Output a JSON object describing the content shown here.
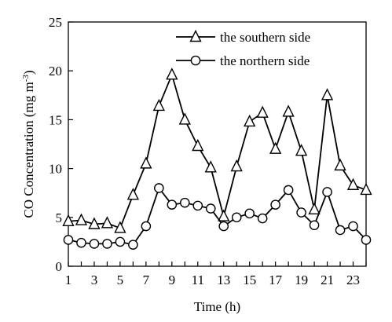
{
  "chart_data": {
    "type": "line",
    "title": "",
    "xlabel": "Time (h)",
    "ylabel": "CO Concentration (mg m",
    "ylabel_sup": "-3",
    "ylabel_close": ")",
    "xlim": [
      1,
      24
    ],
    "ylim": [
      0,
      25
    ],
    "x_ticks": [
      1,
      3,
      5,
      7,
      9,
      11,
      13,
      15,
      17,
      19,
      21,
      23
    ],
    "y_ticks": [
      0,
      5,
      10,
      15,
      20,
      25
    ],
    "grid": false,
    "legend_position": "top-right",
    "x": [
      1,
      2,
      3,
      4,
      5,
      6,
      7,
      8,
      9,
      10,
      11,
      12,
      13,
      14,
      15,
      16,
      17,
      18,
      19,
      20,
      21,
      22,
      23,
      24
    ],
    "series": [
      {
        "name": "the southern side",
        "marker": "triangle",
        "values": [
          4.6,
          4.7,
          4.3,
          4.4,
          3.9,
          7.3,
          10.5,
          16.4,
          19.6,
          15.0,
          12.3,
          10.1,
          5.1,
          10.2,
          14.8,
          15.7,
          12.0,
          15.8,
          11.8,
          5.8,
          17.5,
          10.3,
          8.3,
          7.8
        ]
      },
      {
        "name": "the northern side",
        "marker": "circle",
        "values": [
          2.7,
          2.4,
          2.3,
          2.3,
          2.5,
          2.2,
          4.1,
          8.0,
          6.3,
          6.5,
          6.2,
          5.9,
          4.1,
          5.0,
          5.4,
          4.9,
          6.3,
          7.8,
          5.5,
          4.2,
          7.6,
          3.7,
          4.1,
          2.7
        ]
      }
    ]
  }
}
